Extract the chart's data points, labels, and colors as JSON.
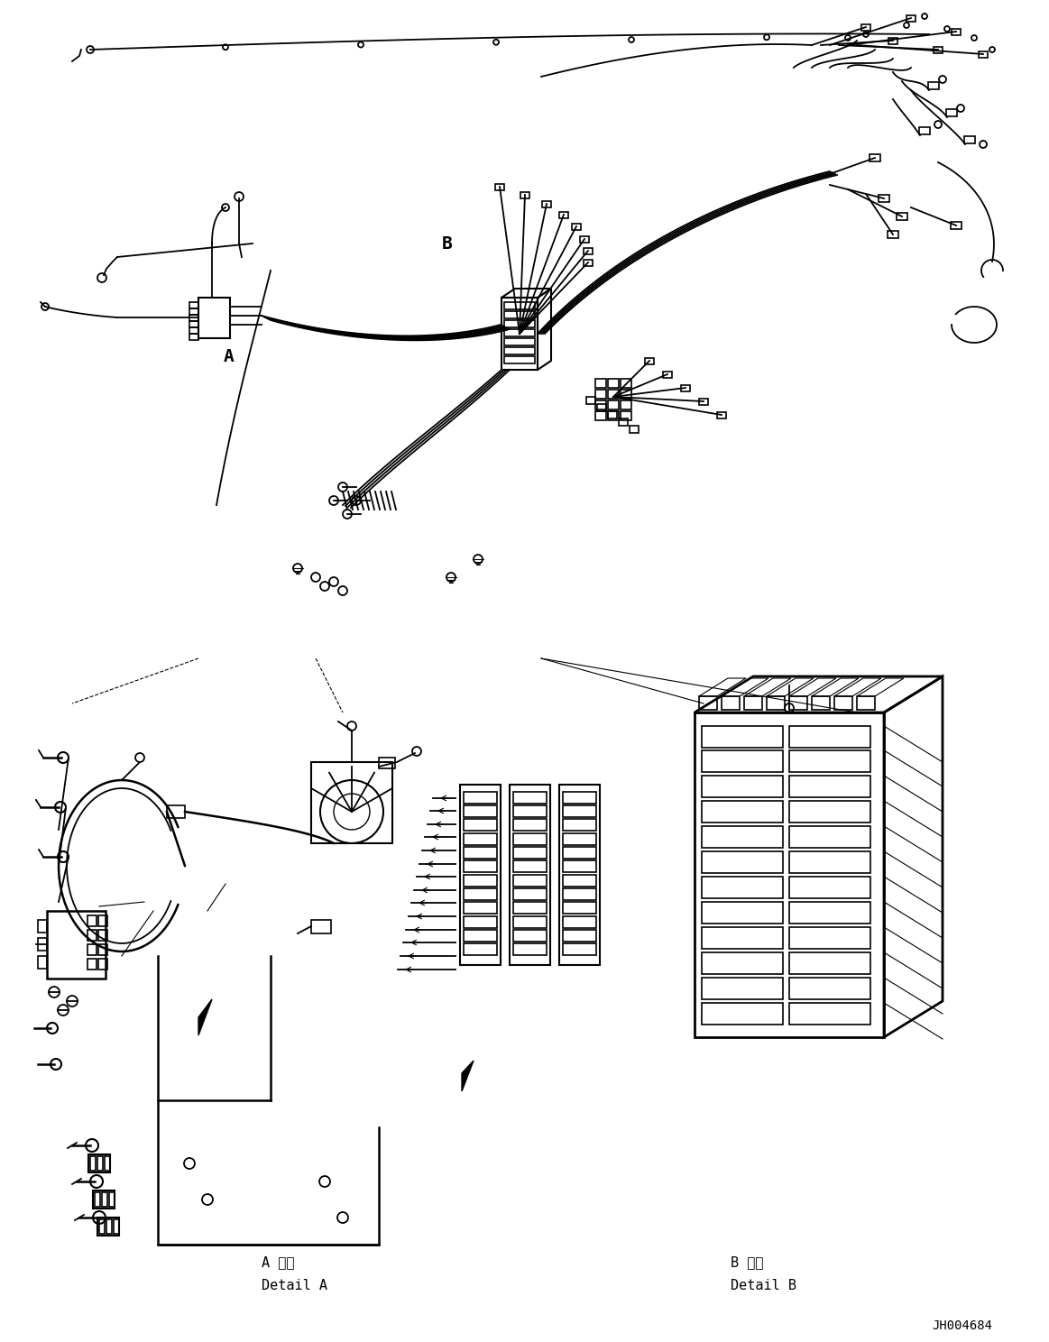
{
  "background_color": "#ffffff",
  "line_color": "#000000",
  "fig_width": 11.63,
  "fig_height": 14.88,
  "dpi": 100,
  "label_A": "A",
  "label_B": "B",
  "detail_A_line1": "A 詳細",
  "detail_A_line2": "Detail A",
  "detail_B_line1": "B 詳細",
  "detail_B_line2": "Detail B",
  "part_number": "JH004684",
  "font_family": "monospace",
  "lw_main": 1.3,
  "lw_thin": 0.8,
  "lw_thick": 1.8
}
